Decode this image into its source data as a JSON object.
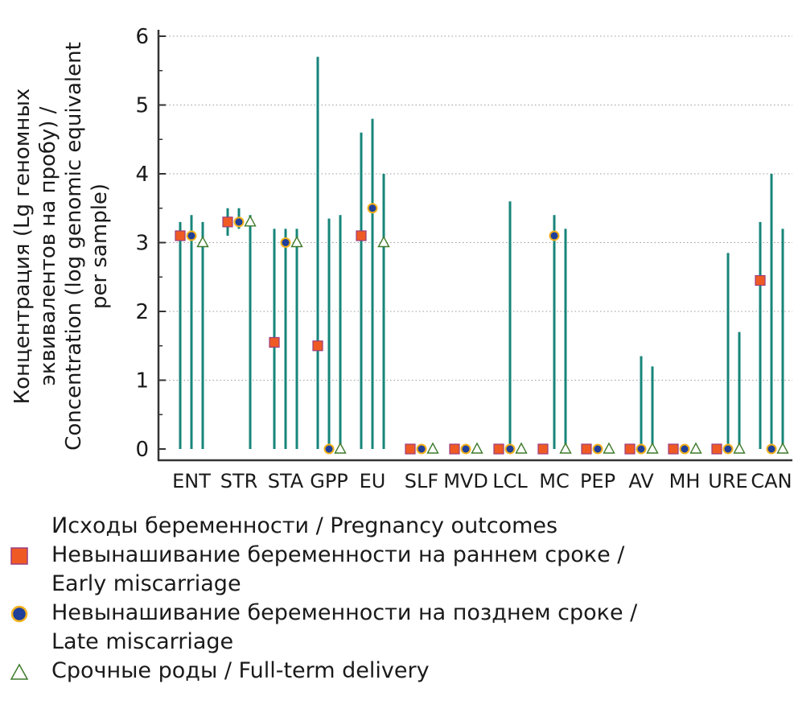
{
  "chart_data": {
    "type": "scatter",
    "ylabel_lines": [
      "Концентрация (Lg геномных",
      "эквивалентов на пробу) /",
      "Concentration (log genomic equivalent",
      "per sample)"
    ],
    "xlabel": "",
    "ylim": [
      0,
      6
    ],
    "yticks": [
      "0",
      "1",
      "2",
      "3",
      "4",
      "5",
      "6"
    ],
    "grid": "horizontal dotted",
    "categories": [
      "ENT",
      "STR",
      "STA",
      "GPP",
      "EU",
      "SLF",
      "MVD",
      "LCL",
      "MC",
      "PEP",
      "AV",
      "MH",
      "URE",
      "CAN"
    ],
    "series": [
      {
        "name": "Невынашивание беременности на раннем сроке / Early miscarriage",
        "marker": "square",
        "values": [
          3.1,
          3.3,
          1.55,
          1.5,
          3.1,
          0,
          0,
          0,
          0,
          0,
          0,
          0,
          0,
          2.45
        ],
        "range_min": [
          0,
          3.1,
          0,
          0,
          0,
          0,
          0,
          0,
          0,
          0,
          0,
          0,
          0,
          0
        ],
        "range_max": [
          3.3,
          3.5,
          3.2,
          5.7,
          4.6,
          0,
          0,
          0,
          0,
          0,
          0,
          0,
          0,
          3.3
        ]
      },
      {
        "name": "Невынашивание беременности на позднем сроке / Late miscarriage",
        "marker": "circle",
        "values": [
          3.1,
          3.3,
          3.0,
          0,
          3.5,
          0,
          0,
          0,
          3.1,
          0,
          0,
          0,
          0,
          0
        ],
        "range_min": [
          0,
          3.2,
          0,
          0,
          0,
          0,
          0,
          0,
          0,
          0,
          0,
          0,
          0,
          0
        ],
        "range_max": [
          3.4,
          3.5,
          3.2,
          3.35,
          4.8,
          0,
          0,
          3.6,
          3.4,
          0,
          1.35,
          0,
          2.85,
          4.0
        ]
      },
      {
        "name": "Срочные роды / Full-term delivery",
        "marker": "triangle",
        "values": [
          3.0,
          3.3,
          3.0,
          0,
          3.0,
          0,
          0,
          0,
          0,
          0,
          0,
          0,
          0,
          0
        ],
        "range_min": [
          0,
          0,
          0,
          0,
          0,
          0,
          0,
          0,
          0,
          0,
          0,
          0,
          0,
          0
        ],
        "range_max": [
          3.3,
          3.4,
          3.2,
          3.4,
          4.0,
          0,
          0,
          0,
          3.2,
          0,
          1.2,
          0,
          1.7,
          3.2
        ]
      }
    ],
    "legend": {
      "title": "Исходы беременности / Pregnancy outcomes",
      "placement": "bottom"
    }
  },
  "colors": {
    "range_line": "#17857a",
    "square_fill": "#ef5a24",
    "square_stroke": "#9b3d7e",
    "circle_fill": "#1f3f99",
    "circle_stroke": "#f4b21c",
    "triangle_fill": "#ffffff",
    "triangle_stroke": "#3d7a2a",
    "axis": "#333333",
    "grid": "#9a9a9a"
  }
}
